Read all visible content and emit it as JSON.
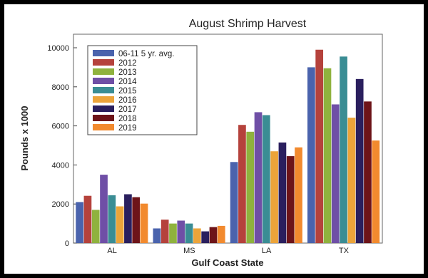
{
  "chart_data": {
    "type": "bar",
    "title": "August Shrimp Harvest",
    "xlabel": "Gulf Coast State",
    "ylabel": "Pounds x 1000",
    "categories": [
      "AL",
      "MS",
      "LA",
      "TX"
    ],
    "ylim": [
      0,
      10000
    ],
    "yticks": [
      "0",
      "2000",
      "4000",
      "6000",
      "8000",
      "10000"
    ],
    "legend_position": "top-left",
    "grid": false,
    "series": [
      {
        "name": "06-11 5 yr. avg.",
        "color": "#4a63ad",
        "values": [
          2100,
          750,
          4150,
          9000
        ]
      },
      {
        "name": "2012",
        "color": "#b5423c",
        "values": [
          2420,
          1200,
          6050,
          9900
        ]
      },
      {
        "name": "2013",
        "color": "#8fb23e",
        "values": [
          1700,
          1000,
          5700,
          8950
        ]
      },
      {
        "name": "2014",
        "color": "#6f4fa6",
        "values": [
          3500,
          1150,
          6700,
          7100
        ]
      },
      {
        "name": "2015",
        "color": "#3a8d94",
        "values": [
          2450,
          1000,
          6550,
          9550
        ]
      },
      {
        "name": "2016",
        "color": "#eca43a",
        "values": [
          1880,
          750,
          4700,
          6420
        ]
      },
      {
        "name": "2017",
        "color": "#2a1f5e",
        "values": [
          2500,
          600,
          5150,
          8400
        ]
      },
      {
        "name": "2018",
        "color": "#6d1419",
        "values": [
          2350,
          820,
          4450,
          7250
        ]
      },
      {
        "name": "2019",
        "color": "#f28a2e",
        "values": [
          2020,
          880,
          4900,
          5250
        ]
      }
    ]
  }
}
